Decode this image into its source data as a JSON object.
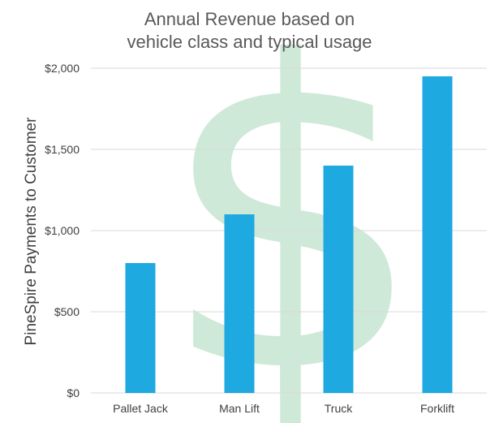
{
  "chart_data": {
    "type": "bar",
    "title_lines": [
      "Annual Revenue based on",
      "vehicle class and typical usage"
    ],
    "categories": [
      "Pallet Jack",
      "Man Lift",
      "Truck",
      "Forklift"
    ],
    "values": [
      800,
      1100,
      1400,
      1950
    ],
    "ylabel": "PineSpire Payments to Customer",
    "xlabel": "",
    "ylim": [
      0,
      2000
    ],
    "yticks": [
      0,
      500,
      1000,
      1500,
      2000
    ],
    "ytick_labels": [
      "$0",
      "$500",
      "$1,000",
      "$1,500",
      "$2,000"
    ],
    "grid": true,
    "bar_color": "#1ea9e1",
    "grid_color": "#d9d9d9",
    "watermark_symbol": "$",
    "watermark_color": "#cfe9d8"
  }
}
